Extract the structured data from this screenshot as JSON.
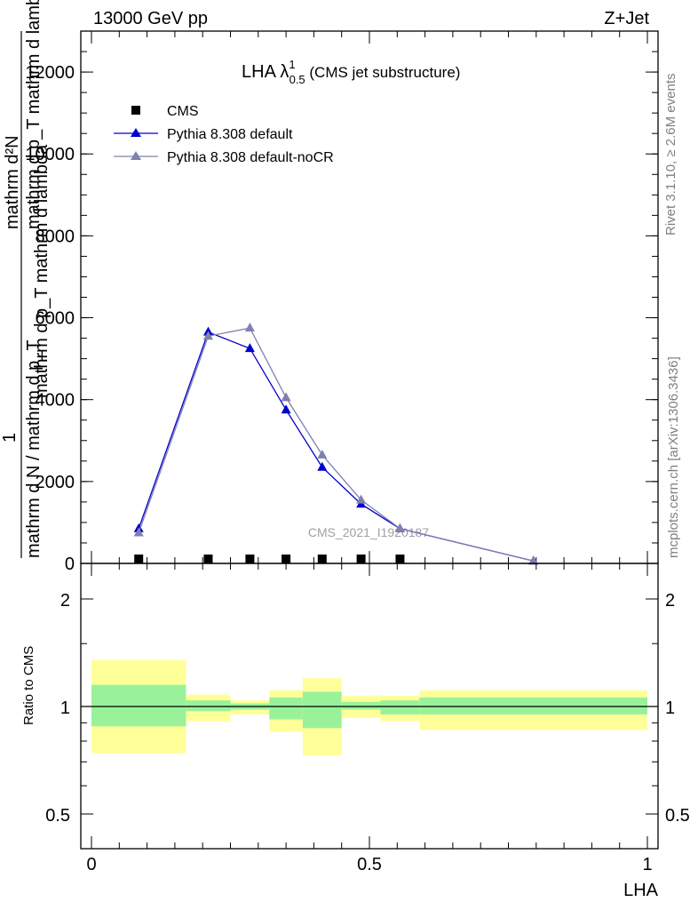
{
  "header": {
    "left": "13000 GeV pp",
    "right": "Z+Jet"
  },
  "side_text": {
    "rivet": "Rivet 3.1.10, ≥ 2.6M events",
    "mcplots": "mcplots.cern.ch [arXiv:1306.3436]"
  },
  "main_panel": {
    "title_main": "LHA λ",
    "title_sup": "1",
    "title_sub": "0.5",
    "title_suffix": " (CMS jet substructure)",
    "watermark": "CMS_2021_I1920187",
    "ylabel_numerator": "mathrm d²N",
    "ylabel_denominator_1": "mathrm d p_T mathrm d lambda",
    "ylabel_denominator_2": "mathrm d p_T mathrm d lambda",
    "ylabel_one": "1",
    "ylabel_lower": "mathrm d N / mathrm d p_T",
    "yticks": [
      {
        "v": 0,
        "label": "0"
      },
      {
        "v": 2000,
        "label": "2000"
      },
      {
        "v": 4000,
        "label": "4000"
      },
      {
        "v": 6000,
        "label": "6000"
      },
      {
        "v": 8000,
        "label": "8000"
      },
      {
        "v": 10000,
        "label": "10000"
      },
      {
        "v": 12000,
        "label": "12000"
      }
    ]
  },
  "ratio_panel": {
    "ylabel": "Ratio to CMS",
    "yticks": [
      {
        "v": 0.5,
        "label": "0.5"
      },
      {
        "v": 1,
        "label": "1"
      },
      {
        "v": 2,
        "label": "2"
      }
    ],
    "xlabel": "LHA",
    "xticks": [
      {
        "v": 0,
        "label": "0"
      },
      {
        "v": 0.5,
        "label": "0.5"
      },
      {
        "v": 1,
        "label": "1"
      }
    ]
  },
  "colors": {
    "cms": "#000000",
    "default": "#0000cc",
    "noCR": "#8080b0",
    "band_inner": "#99f299",
    "band_outer": "#ffff99"
  },
  "chart_data": {
    "type": "line",
    "xlabel": "LHA",
    "xlim": [
      0,
      1
    ],
    "main_ylim": [
      0,
      13000
    ],
    "ratio_ylim": [
      0.4,
      2.3
    ],
    "ratio_log_scale": true,
    "legend_position": "top-left",
    "series": [
      {
        "name": "CMS",
        "marker": "square",
        "x": [
          0.085,
          0.21,
          0.285,
          0.35,
          0.415,
          0.485,
          0.555
        ],
        "y": [
          0,
          0,
          0,
          0,
          0,
          0,
          0
        ]
      },
      {
        "name": "Pythia 8.308 default",
        "marker": "triangle",
        "x": [
          0.085,
          0.21,
          0.285,
          0.35,
          0.415,
          0.485,
          0.555,
          0.795
        ],
        "y": [
          850,
          5650,
          5250,
          3750,
          2350,
          1450,
          850,
          60
        ]
      },
      {
        "name": "Pythia 8.308 default-noCR",
        "marker": "triangle",
        "x": [
          0.085,
          0.21,
          0.285,
          0.35,
          0.415,
          0.485,
          0.555,
          0.795
        ],
        "y": [
          750,
          5550,
          5750,
          4050,
          2650,
          1550,
          850,
          60
        ]
      }
    ],
    "ratio_bands": [
      {
        "x0": 0.0,
        "x1": 0.17,
        "inner": [
          0.88,
          1.15
        ],
        "outer": [
          0.74,
          1.35
        ]
      },
      {
        "x0": 0.17,
        "x1": 0.25,
        "inner": [
          0.97,
          1.04
        ],
        "outer": [
          0.91,
          1.08
        ]
      },
      {
        "x0": 0.25,
        "x1": 0.32,
        "inner": [
          0.98,
          1.02
        ],
        "outer": [
          0.95,
          1.04
        ]
      },
      {
        "x0": 0.32,
        "x1": 0.38,
        "inner": [
          0.92,
          1.06
        ],
        "outer": [
          0.85,
          1.11
        ]
      },
      {
        "x0": 0.38,
        "x1": 0.45,
        "inner": [
          0.87,
          1.1
        ],
        "outer": [
          0.73,
          1.2
        ]
      },
      {
        "x0": 0.45,
        "x1": 0.52,
        "inner": [
          0.98,
          1.03
        ],
        "outer": [
          0.93,
          1.07
        ]
      },
      {
        "x0": 0.52,
        "x1": 0.59,
        "inner": [
          0.95,
          1.04
        ],
        "outer": [
          0.91,
          1.07
        ]
      },
      {
        "x0": 0.59,
        "x1": 1.0,
        "inner": [
          0.95,
          1.06
        ],
        "outer": [
          0.86,
          1.11
        ]
      }
    ]
  }
}
